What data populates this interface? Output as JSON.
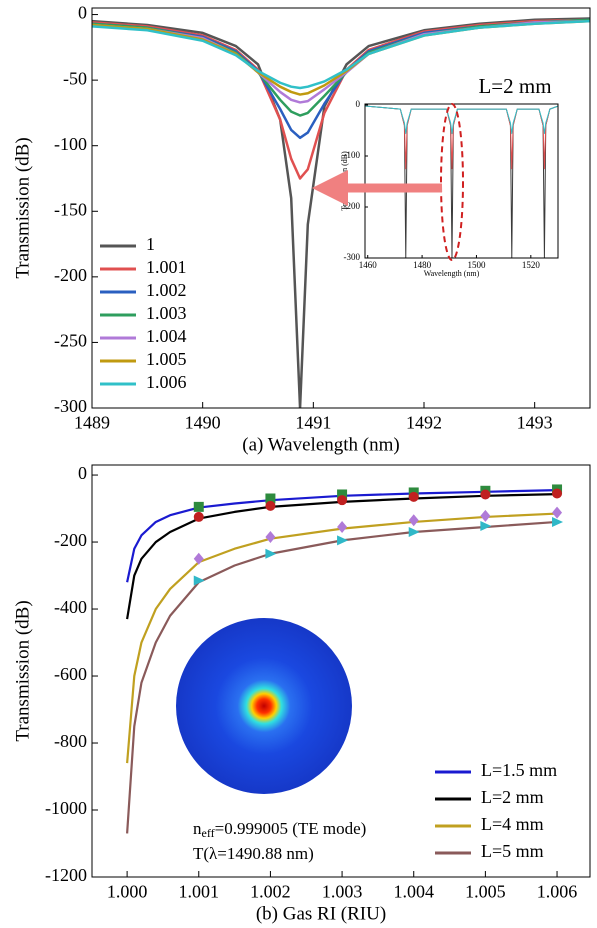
{
  "chart_data": [
    {
      "type": "line",
      "xlabel": "(a) Wavelength (nm)",
      "ylabel": "Transmission (dB)",
      "xlim": [
        1489,
        1493.5
      ],
      "ylim": [
        -300,
        5
      ],
      "xticks": [
        1489,
        1490,
        1491,
        1492,
        1493
      ],
      "yticks": [
        0,
        -50,
        -100,
        -150,
        -200,
        -250,
        -300
      ],
      "legend": "lower left",
      "x": [
        1489,
        1489.5,
        1490,
        1490.3,
        1490.5,
        1490.7,
        1490.8,
        1490.88,
        1490.95,
        1491.1,
        1491.3,
        1491.5,
        1492,
        1492.5,
        1493,
        1493.5
      ],
      "series": [
        {
          "name": "1",
          "color": "#555555",
          "values": [
            -5,
            -8,
            -14,
            -24,
            -38,
            -80,
            -140,
            -300,
            -160,
            -70,
            -38,
            -24,
            -12,
            -7,
            -4,
            -3
          ]
        },
        {
          "name": "1.001",
          "color": "#e05050",
          "values": [
            -6,
            -9,
            -16,
            -27,
            -42,
            -80,
            -110,
            -125,
            -118,
            -75,
            -42,
            -27,
            -13,
            -8,
            -5,
            -4
          ]
        },
        {
          "name": "1.002",
          "color": "#2a5fc0",
          "values": [
            -7,
            -10,
            -17,
            -28,
            -43,
            -72,
            -88,
            -94,
            -90,
            -68,
            -43,
            -28,
            -14,
            -9,
            -6,
            -4
          ]
        },
        {
          "name": "1.003",
          "color": "#2e9e5e",
          "values": [
            -7,
            -10,
            -18,
            -29,
            -44,
            -65,
            -74,
            -77,
            -75,
            -62,
            -44,
            -29,
            -15,
            -9,
            -6,
            -4
          ]
        },
        {
          "name": "1.004",
          "color": "#b07ad8",
          "values": [
            -8,
            -11,
            -18,
            -30,
            -44,
            -59,
            -65,
            -67,
            -66,
            -57,
            -44,
            -30,
            -15,
            -10,
            -6,
            -5
          ]
        },
        {
          "name": "1.005",
          "color": "#c09a10",
          "values": [
            -8,
            -11,
            -19,
            -30,
            -44,
            -55,
            -59,
            -61,
            -60,
            -54,
            -43,
            -30,
            -16,
            -10,
            -7,
            -5
          ]
        },
        {
          "name": "1.006",
          "color": "#30c0c8",
          "values": [
            -9,
            -12,
            -20,
            -31,
            -43,
            -52,
            -55,
            -56,
            -55,
            -51,
            -42,
            -30,
            -16,
            -10,
            -7,
            -5
          ]
        }
      ]
    },
    {
      "type": "line",
      "title": "L=2 mm",
      "xlabel": "Wavelength (nm)",
      "ylabel": "Transmission (dB)",
      "xlim": [
        1459,
        1530
      ],
      "ylim": [
        -300,
        2
      ],
      "xticks": [
        1460,
        1480,
        1500,
        1520
      ],
      "yticks": [
        0,
        -100,
        -200,
        -300
      ],
      "x": [
        1459,
        1472,
        1473.5,
        1474,
        1474.5,
        1476,
        1489,
        1490.5,
        1491,
        1491.5,
        1493,
        1511,
        1512.5,
        1513,
        1513.5,
        1515,
        1523,
        1524.5,
        1525,
        1525.5,
        1527,
        1530
      ],
      "series": [
        {
          "color": "#3a3a3a",
          "values": [
            -2,
            -8,
            -40,
            -300,
            -40,
            -8,
            -8,
            -40,
            -300,
            -40,
            -8,
            -8,
            -40,
            -300,
            -40,
            -8,
            -8,
            -40,
            -300,
            -40,
            -8,
            -2
          ]
        },
        {
          "color": "#e05050",
          "values": [
            -2,
            -8,
            -40,
            -125,
            -40,
            -8,
            -8,
            -40,
            -125,
            -40,
            -8,
            -8,
            -40,
            -125,
            -40,
            -8,
            -8,
            -40,
            -125,
            -40,
            -8,
            -2
          ]
        },
        {
          "color": "#30c0c8",
          "values": [
            -2,
            -8,
            -35,
            -56,
            -35,
            -8,
            -8,
            -35,
            -56,
            -35,
            -8,
            -8,
            -35,
            -56,
            -35,
            -8,
            -8,
            -35,
            -56,
            -35,
            -8,
            -2
          ]
        }
      ]
    },
    {
      "type": "line",
      "xlabel": "(b) Gas RI (RIU)",
      "ylabel": "Transmission (dB)",
      "annotations": [
        {
          "text": "n",
          "sub": "eff",
          "rest": "=0.999005 (TE mode)"
        },
        {
          "text": "T(λ=1490.88 nm)"
        }
      ],
      "xlim": [
        0.99951,
        1.00646
      ],
      "ylim": [
        -1200,
        30
      ],
      "xticks": [
        {
          "value": 1,
          "label": "1.000"
        },
        1.001,
        1.002,
        1.003,
        1.004,
        1.005,
        1.006
      ],
      "yticks": [
        0,
        -200,
        -400,
        -600,
        -800,
        -1000,
        -1200
      ],
      "legend": "lower right",
      "x": [
        1.0,
        1.0001,
        1.0002,
        1.0004,
        1.0006,
        1.001,
        1.0015,
        1.002,
        1.003,
        1.004,
        1.005,
        1.006
      ],
      "series": [
        {
          "name": "L=1.5 mm",
          "color": "#1a1ad0",
          "values": [
            -320,
            -220,
            -180,
            -140,
            -120,
            -97,
            -85,
            -75,
            -62,
            -55,
            -50,
            -45
          ]
        },
        {
          "name": "L=2 mm",
          "color": "#000000",
          "values": [
            -430,
            -300,
            -250,
            -200,
            -170,
            -130,
            -110,
            -95,
            -80,
            -70,
            -62,
            -57
          ]
        },
        {
          "name": "L=4 mm",
          "color": "#c0a020",
          "values": [
            -860,
            -600,
            -500,
            -400,
            -340,
            -260,
            -220,
            -190,
            -160,
            -140,
            -125,
            -115
          ]
        },
        {
          "name": "L=5 mm",
          "color": "#8a5a5a",
          "values": [
            -1070,
            -750,
            -620,
            -500,
            -420,
            -320,
            -270,
            -235,
            -195,
            -170,
            -155,
            -140
          ]
        }
      ],
      "markers": [
        {
          "marker": "square",
          "color": "#2e8b3e",
          "x": [
            1.001,
            1.002,
            1.003,
            1.004,
            1.005,
            1.006
          ],
          "values": [
            -95,
            -70,
            -58,
            -52,
            -47,
            -43
          ]
        },
        {
          "marker": "circle",
          "color": "#c02020",
          "x": [
            1.001,
            1.002,
            1.003,
            1.004,
            1.005,
            1.006
          ],
          "values": [
            -125,
            -92,
            -75,
            -65,
            -58,
            -55
          ]
        },
        {
          "marker": "diamond",
          "color": "#b07ad8",
          "x": [
            1.001,
            1.002,
            1.003,
            1.004,
            1.005,
            1.006
          ],
          "values": [
            -250,
            -185,
            -155,
            -135,
            -122,
            -112
          ]
        },
        {
          "marker": "triangle",
          "color": "#30b8c8",
          "x": [
            1.001,
            1.002,
            1.003,
            1.004,
            1.005,
            1.006
          ],
          "values": [
            -315,
            -235,
            -195,
            -170,
            -152,
            -140
          ]
        }
      ]
    }
  ]
}
